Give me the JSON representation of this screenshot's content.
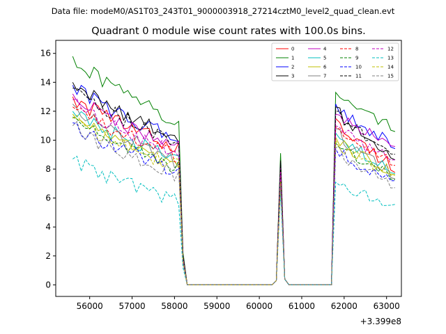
{
  "chart_data": {
    "type": "line",
    "suptitle": "Data file: modeM0/AS1T03_243T01_9000003918_27214cztM0_level2_quad_clean.evt",
    "title": "Quadrant 0 module wise count rates with 100.0s bins.",
    "xlabel": "",
    "ylabel": "",
    "x_offset_label": "+3.399e8",
    "xlim": [
      55200,
      63350
    ],
    "ylim": [
      -0.8,
      16.9
    ],
    "x_ticks": [
      56000,
      57000,
      58000,
      59000,
      60000,
      61000,
      62000,
      63000
    ],
    "x_tick_labels": [
      "56000",
      "57000",
      "58000",
      "59000",
      "60000",
      "61000",
      "62000",
      "63000"
    ],
    "y_ticks": [
      0,
      2,
      4,
      6,
      8,
      10,
      12,
      14,
      16
    ],
    "y_tick_labels": [
      "0",
      "2",
      "4",
      "6",
      "8",
      "10",
      "12",
      "14",
      "16"
    ],
    "legend_location": "upper right",
    "legend_columns": 4,
    "segments": {
      "seg1_start": 55600,
      "seg1_end": 58100,
      "drop_end": 58300,
      "gap1_end": 60300,
      "peak_start": 60400,
      "peak_x": 60500,
      "peak_end": 60600,
      "gap2_start": 60700,
      "gap2_end": 61700,
      "seg2_start": 61800,
      "seg2_end": 63200,
      "step": 100
    },
    "series": [
      {
        "name": "0",
        "color": "#ff0000",
        "dash": "solid",
        "start": 13.0,
        "seg1_end_value": 9.5,
        "seg2_start_value": 11.5,
        "end_value": 8.2,
        "peak": 8.5
      },
      {
        "name": "1",
        "color": "#008000",
        "dash": "solid",
        "start": 15.8,
        "seg1_end_value": 11.2,
        "seg2_start_value": 13.3,
        "end_value": 11.0,
        "peak": 9.1
      },
      {
        "name": "2",
        "color": "#0000ff",
        "dash": "solid",
        "start": 13.8,
        "seg1_end_value": 10.0,
        "seg2_start_value": 12.5,
        "end_value": 9.8,
        "peak": 8.4
      },
      {
        "name": "3",
        "color": "#000000",
        "dash": "solid",
        "start": 14.0,
        "seg1_end_value": 10.2,
        "seg2_start_value": 12.3,
        "end_value": 9.0,
        "peak": 8.6
      },
      {
        "name": "4",
        "color": "#bf00bf",
        "dash": "solid",
        "start": 13.2,
        "seg1_end_value": 9.4,
        "seg2_start_value": 11.8,
        "end_value": 9.9,
        "peak": 8.2
      },
      {
        "name": "5",
        "color": "#00bfbf",
        "dash": "solid",
        "start": 12.0,
        "seg1_end_value": 8.6,
        "seg2_start_value": 10.5,
        "end_value": 8.0,
        "peak": 7.6
      },
      {
        "name": "6",
        "color": "#bfbf00",
        "dash": "solid",
        "start": 11.8,
        "seg1_end_value": 8.0,
        "seg2_start_value": 10.2,
        "end_value": 7.9,
        "peak": 7.3
      },
      {
        "name": "7",
        "color": "#808080",
        "dash": "solid",
        "start": 12.5,
        "seg1_end_value": 8.5,
        "seg2_start_value": 10.8,
        "end_value": 7.6,
        "peak": 7.5
      },
      {
        "name": "8",
        "color": "#ff0000",
        "dash": "dashed",
        "start": 12.3,
        "seg1_end_value": 8.8,
        "seg2_start_value": 10.9,
        "end_value": 8.5,
        "peak": 7.9
      },
      {
        "name": "9",
        "color": "#008000",
        "dash": "dashed",
        "start": 11.6,
        "seg1_end_value": 8.1,
        "seg2_start_value": 9.8,
        "end_value": 7.5,
        "peak": 7.2
      },
      {
        "name": "10",
        "color": "#0000ff",
        "dash": "dashed",
        "start": 11.2,
        "seg1_end_value": 7.8,
        "seg2_start_value": 9.4,
        "end_value": 7.4,
        "peak": 7.0
      },
      {
        "name": "11",
        "color": "#000000",
        "dash": "dashed",
        "start": 13.6,
        "seg1_end_value": 9.7,
        "seg2_start_value": 12.0,
        "end_value": 9.2,
        "peak": 8.3
      },
      {
        "name": "12",
        "color": "#bf00bf",
        "dash": "dashed",
        "start": 12.8,
        "seg1_end_value": 9.0,
        "seg2_start_value": 11.0,
        "end_value": 8.8,
        "peak": 7.8
      },
      {
        "name": "13",
        "color": "#00bfbf",
        "dash": "dashed",
        "start": 8.7,
        "seg1_end_value": 5.9,
        "seg2_start_value": 7.1,
        "end_value": 5.7,
        "peak": 6.4
      },
      {
        "name": "14",
        "color": "#bfbf00",
        "dash": "dashed",
        "start": 11.5,
        "seg1_end_value": 8.2,
        "seg2_start_value": 10.0,
        "end_value": 7.7,
        "peak": 7.1
      },
      {
        "name": "15",
        "color": "#808080",
        "dash": "dashed",
        "start": 11.0,
        "seg1_end_value": 7.6,
        "seg2_start_value": 9.5,
        "end_value": 6.8,
        "peak": 6.9
      }
    ]
  }
}
